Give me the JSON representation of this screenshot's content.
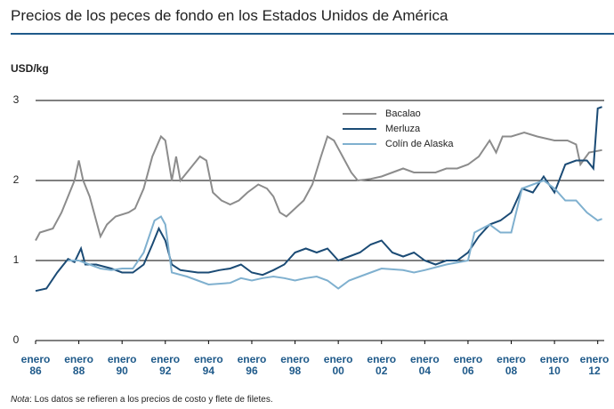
{
  "chart_data": {
    "type": "line",
    "title": "Precios de los peces de fondo en los Estados Unidos de América",
    "y_label": "USD/kg",
    "note_label": "Nota",
    "note_text": ": Los datos se refieren a los precios de costo y flete de filetes.",
    "xlim": [
      1986,
      2012.3
    ],
    "xticks": [
      {
        "value": 1986,
        "label": "enero 86"
      },
      {
        "value": 1988,
        "label": "enero 88"
      },
      {
        "value": 1990,
        "label": "enero 90"
      },
      {
        "value": 1992,
        "label": "enero 92"
      },
      {
        "value": 1994,
        "label": "enero 94"
      },
      {
        "value": 1996,
        "label": "enero 96"
      },
      {
        "value": 1998,
        "label": "enero 98"
      },
      {
        "value": 2000,
        "label": "enero 00"
      },
      {
        "value": 2002,
        "label": "enero 02"
      },
      {
        "value": 2004,
        "label": "enero 04"
      },
      {
        "value": 2006,
        "label": "enero 06"
      },
      {
        "value": 2008,
        "label": "enero 08"
      },
      {
        "value": 2010,
        "label": "enero 10"
      },
      {
        "value": 2012,
        "label": "enero 12"
      }
    ],
    "ylim": [
      0,
      3
    ],
    "yticks": [
      0,
      1,
      2,
      3
    ],
    "grid": true,
    "legend": "top-center",
    "series": [
      {
        "name": "Bacalao",
        "color": "#8c8c8c",
        "x": [
          1986,
          1986.2,
          1986.8,
          1987.2,
          1987.5,
          1987.8,
          1988.0,
          1988.2,
          1988.5,
          1988.8,
          1989.0,
          1989.3,
          1989.7,
          1990.3,
          1990.6,
          1991.0,
          1991.4,
          1991.8,
          1992.0,
          1992.3,
          1992.5,
          1992.7,
          1993.0,
          1993.3,
          1993.6,
          1993.9,
          1994.2,
          1994.6,
          1995.0,
          1995.4,
          1995.8,
          1996.3,
          1996.7,
          1997.0,
          1997.3,
          1997.6,
          1998.0,
          1998.4,
          1998.8,
          1999.2,
          1999.5,
          1999.8,
          2000.2,
          2000.6,
          2000.9,
          2001.5,
          2002.0,
          2002.5,
          2003.0,
          2003.5,
          2004.0,
          2004.5,
          2005.0,
          2005.5,
          2006.0,
          2006.5,
          2007.0,
          2007.3,
          2007.6,
          2008.0,
          2008.6,
          2009.2,
          2010.0,
          2010.6,
          2011.0,
          2011.2,
          2011.6,
          2012.2
        ],
        "values": [
          1.25,
          1.35,
          1.4,
          1.6,
          1.8,
          2.0,
          2.25,
          2.0,
          1.8,
          1.5,
          1.3,
          1.45,
          1.55,
          1.6,
          1.65,
          1.9,
          2.3,
          2.55,
          2.5,
          2.0,
          2.3,
          2.0,
          2.1,
          2.2,
          2.3,
          2.25,
          1.85,
          1.75,
          1.7,
          1.75,
          1.85,
          1.95,
          1.9,
          1.8,
          1.6,
          1.55,
          1.65,
          1.75,
          1.95,
          2.3,
          2.55,
          2.5,
          2.3,
          2.1,
          2.0,
          2.02,
          2.05,
          2.1,
          2.15,
          2.1,
          2.1,
          2.1,
          2.15,
          2.15,
          2.2,
          2.3,
          2.5,
          2.35,
          2.55,
          2.55,
          2.6,
          2.55,
          2.5,
          2.5,
          2.45,
          2.2,
          2.35,
          2.38
        ]
      },
      {
        "name": "Merluza",
        "color": "#1b4b75",
        "x": [
          1986,
          1986.5,
          1987.0,
          1987.5,
          1987.8,
          1988.1,
          1988.3,
          1988.8,
          1989.5,
          1990.0,
          1990.5,
          1991.0,
          1991.4,
          1991.7,
          1992.0,
          1992.3,
          1992.7,
          1993.5,
          1994.0,
          1994.5,
          1995.0,
          1995.5,
          1996.0,
          1996.5,
          1997.0,
          1997.5,
          1998.0,
          1998.5,
          1999.0,
          1999.5,
          2000.0,
          2000.5,
          2001.0,
          2001.5,
          2002.0,
          2002.5,
          2003.0,
          2003.5,
          2004.0,
          2004.5,
          2005.0,
          2005.5,
          2006.0,
          2006.5,
          2007.0,
          2007.5,
          2008.0,
          2008.5,
          2009.0,
          2009.5,
          2010.0,
          2010.5,
          2011.0,
          2011.5,
          2011.8,
          2012.0,
          2012.2
        ],
        "values": [
          0.62,
          0.65,
          0.85,
          1.02,
          0.98,
          1.15,
          0.95,
          0.95,
          0.9,
          0.85,
          0.85,
          0.95,
          1.2,
          1.4,
          1.25,
          0.95,
          0.88,
          0.85,
          0.85,
          0.88,
          0.9,
          0.95,
          0.85,
          0.82,
          0.88,
          0.95,
          1.1,
          1.15,
          1.1,
          1.15,
          1.0,
          1.05,
          1.1,
          1.2,
          1.25,
          1.1,
          1.05,
          1.1,
          1.0,
          0.95,
          1.0,
          1.0,
          1.1,
          1.3,
          1.45,
          1.5,
          1.6,
          1.9,
          1.85,
          2.05,
          1.85,
          2.2,
          2.25,
          2.25,
          2.15,
          2.9,
          2.92
        ]
      },
      {
        "name": "Colín de Alaska",
        "color": "#7fb0cf",
        "x": [
          1987.5,
          1988.0,
          1988.5,
          1989.0,
          1989.5,
          1990.0,
          1990.5,
          1991.0,
          1991.5,
          1991.8,
          1992.0,
          1992.3,
          1993.0,
          1993.5,
          1994.0,
          1995.0,
          1995.5,
          1996.0,
          1996.5,
          1997.0,
          1997.5,
          1998.0,
          1998.5,
          1999.0,
          1999.5,
          2000.0,
          2000.5,
          2001.0,
          2001.5,
          2002.0,
          2003.0,
          2003.5,
          2004.0,
          2005.0,
          2006.0,
          2006.3,
          2007.0,
          2007.5,
          2008.0,
          2008.5,
          2009.0,
          2009.5,
          2010.0,
          2010.5,
          2011.0,
          2011.5,
          2012.0,
          2012.2
        ],
        "values": [
          1.0,
          1.0,
          0.95,
          0.9,
          0.88,
          0.9,
          0.9,
          1.1,
          1.5,
          1.55,
          1.45,
          0.85,
          0.8,
          0.75,
          0.7,
          0.72,
          0.78,
          0.75,
          0.78,
          0.8,
          0.78,
          0.75,
          0.78,
          0.8,
          0.75,
          0.65,
          0.75,
          0.8,
          0.85,
          0.9,
          0.88,
          0.85,
          0.88,
          0.95,
          1.0,
          1.35,
          1.45,
          1.35,
          1.35,
          1.9,
          1.95,
          2.0,
          1.9,
          1.75,
          1.75,
          1.6,
          1.5,
          1.52
        ]
      }
    ]
  }
}
